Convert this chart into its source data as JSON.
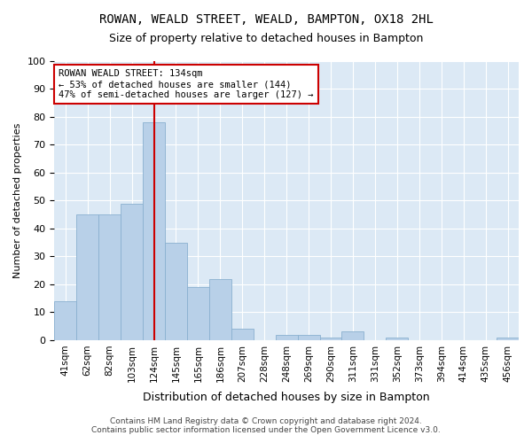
{
  "title": "ROWAN, WEALD STREET, WEALD, BAMPTON, OX18 2HL",
  "subtitle": "Size of property relative to detached houses in Bampton",
  "xlabel": "Distribution of detached houses by size in Bampton",
  "ylabel": "Number of detached properties",
  "categories": [
    "41sqm",
    "62sqm",
    "82sqm",
    "103sqm",
    "124sqm",
    "145sqm",
    "165sqm",
    "186sqm",
    "207sqm",
    "228sqm",
    "248sqm",
    "269sqm",
    "290sqm",
    "311sqm",
    "331sqm",
    "352sqm",
    "373sqm",
    "394sqm",
    "414sqm",
    "435sqm",
    "456sqm"
  ],
  "values": [
    14,
    45,
    45,
    49,
    78,
    35,
    19,
    22,
    4,
    0,
    2,
    2,
    1,
    3,
    0,
    1,
    0,
    0,
    0,
    0,
    1
  ],
  "bar_color": "#b8d0e8",
  "bar_edge_color": "#8ab0d0",
  "vline_x_index": 4,
  "vline_color": "#cc0000",
  "ylim": [
    0,
    100
  ],
  "annotation_text": "ROWAN WEALD STREET: 134sqm\n← 53% of detached houses are smaller (144)\n47% of semi-detached houses are larger (127) →",
  "annotation_box_color": "#ffffff",
  "annotation_box_edge_color": "#cc0000",
  "plot_bg_color": "#dce9f5",
  "fig_bg_color": "#ffffff",
  "footer_line1": "Contains HM Land Registry data © Crown copyright and database right 2024.",
  "footer_line2": "Contains public sector information licensed under the Open Government Licence v3.0."
}
